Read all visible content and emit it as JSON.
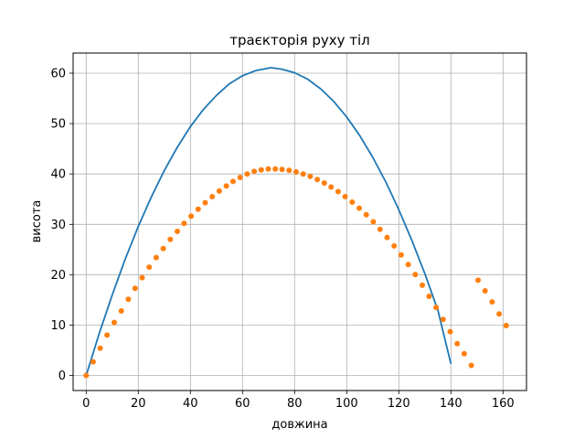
{
  "chart_data": {
    "type": "line",
    "title": "траєкторія руху тіл",
    "xlabel": "довжина",
    "ylabel": "висота",
    "xlim": [
      -5,
      169
    ],
    "ylim": [
      -3,
      64
    ],
    "xticks": [
      0,
      20,
      40,
      60,
      80,
      100,
      120,
      140,
      160
    ],
    "yticks": [
      0,
      10,
      20,
      30,
      40,
      50,
      60
    ],
    "grid": true,
    "series": [
      {
        "style": "line",
        "color": "#1f77b4",
        "x": [
          0,
          5,
          10,
          15,
          20,
          25,
          30,
          35,
          40,
          45,
          50,
          55,
          60,
          65,
          70,
          71,
          75,
          80,
          85,
          90,
          95,
          100,
          105,
          110,
          115,
          120,
          125,
          130,
          135,
          140
        ],
        "y": [
          0,
          8.3,
          16.0,
          23.1,
          29.6,
          35.4,
          40.7,
          45.3,
          49.4,
          52.8,
          55.6,
          57.9,
          59.5,
          60.5,
          61.0,
          61.1,
          60.8,
          60.1,
          58.8,
          56.9,
          54.4,
          51.3,
          47.6,
          43.3,
          38.4,
          32.9,
          26.8,
          20.2,
          12.9,
          2.3
        ]
      },
      {
        "style": "scatter",
        "color": "#ff7f0e",
        "x": [
          0,
          2.7,
          5.4,
          8.0,
          10.8,
          13.5,
          16.2,
          18.8,
          21.5,
          24.2,
          26.9,
          29.6,
          32.3,
          35.0,
          37.6,
          40.3,
          43.0,
          45.7,
          48.4,
          51.1,
          53.8,
          56.4,
          59.1,
          61.8,
          64.5,
          67.2,
          69.9,
          72.6,
          75.2,
          77.9,
          80.6,
          83.3,
          86.0,
          88.7,
          91.4,
          94.0,
          96.7,
          99.4,
          102.1,
          104.8,
          107.5,
          110.2,
          112.8,
          115.5,
          118.2,
          120.9,
          123.6,
          126.3,
          129.0,
          131.6,
          134.3,
          137.0,
          139.7,
          142.4,
          145.1,
          147.8,
          150.4,
          153.1,
          155.8,
          158.5,
          161.2
        ],
        "y": [
          0,
          2.7,
          5.4,
          8.0,
          10.5,
          12.8,
          15.1,
          17.3,
          19.4,
          21.5,
          23.4,
          25.2,
          27.0,
          28.6,
          30.2,
          31.6,
          33.0,
          34.3,
          35.5,
          36.6,
          37.6,
          38.5,
          39.3,
          40.0,
          40.5,
          40.8,
          41.0,
          41.0,
          40.9,
          40.7,
          40.4,
          40.0,
          39.5,
          38.9,
          38.2,
          37.4,
          36.5,
          35.5,
          34.4,
          33.2,
          31.9,
          30.5,
          29.0,
          27.4,
          25.7,
          23.9,
          22.0,
          20.0,
          17.9,
          15.7,
          13.5,
          11.1,
          8.7,
          6.3,
          4.3,
          2.0,
          18.9,
          16.8,
          14.6,
          12.2,
          9.9
        ]
      }
    ]
  }
}
